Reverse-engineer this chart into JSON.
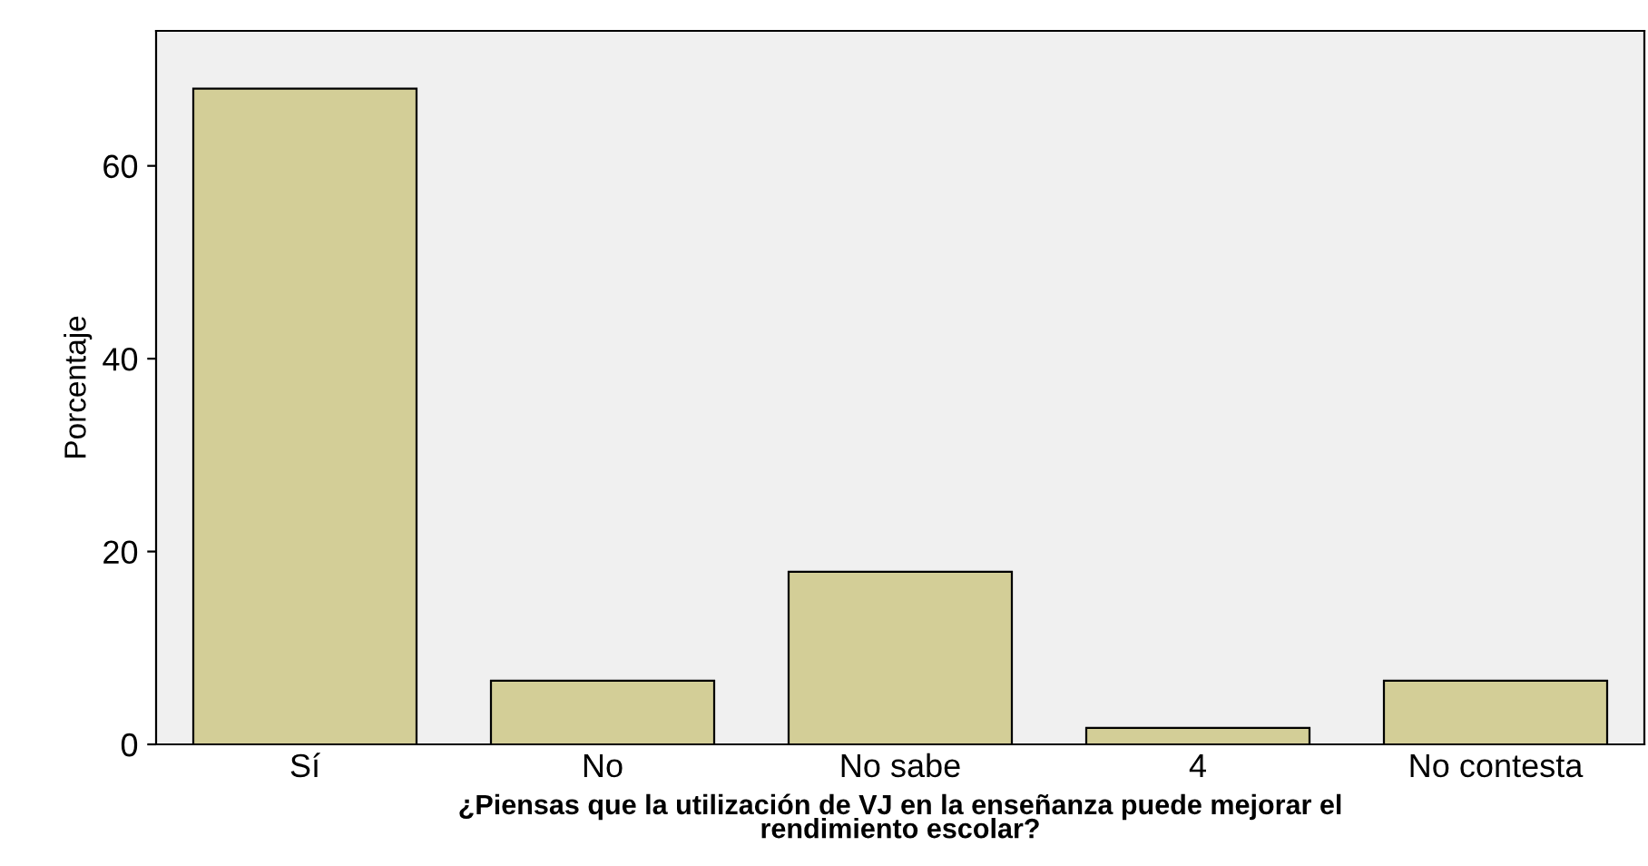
{
  "chart_data": {
    "type": "bar",
    "xlabel": "¿Piensas que la utilización de VJ en la enseñanza puede mejorar el\nrendimiento escolar?",
    "ylabel": "Porcentaje",
    "categories": [
      "Sí",
      "No",
      "No sabe",
      "4",
      "No contesta"
    ],
    "values": [
      68.0,
      6.6,
      17.9,
      1.7,
      6.6
    ],
    "color": "#d3ce97",
    "ylim": [
      0,
      74
    ],
    "yticks": [
      0,
      20,
      40,
      60
    ],
    "grid": false
  }
}
